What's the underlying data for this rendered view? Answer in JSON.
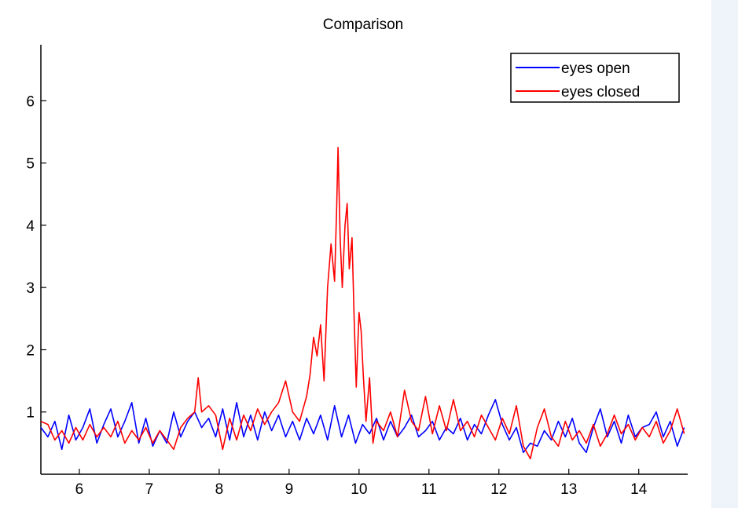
{
  "chart_data": {
    "type": "line",
    "title": "Comparison",
    "xlabel": "",
    "ylabel": "",
    "xlim": [
      5.45,
      14.7
    ],
    "ylim": [
      0,
      6.9
    ],
    "xticks": [
      6,
      7,
      8,
      9,
      10,
      11,
      12,
      13,
      14
    ],
    "yticks": [
      1,
      2,
      3,
      4,
      5,
      6
    ],
    "legend_position": "top-right",
    "grid": false,
    "series": [
      {
        "name": "eyes open",
        "color": "#0000ff",
        "x": [
          5.45,
          5.55,
          5.65,
          5.75,
          5.85,
          5.95,
          6.05,
          6.15,
          6.25,
          6.35,
          6.45,
          6.55,
          6.65,
          6.75,
          6.85,
          6.95,
          7.05,
          7.15,
          7.25,
          7.35,
          7.45,
          7.55,
          7.65,
          7.75,
          7.85,
          7.95,
          8.05,
          8.15,
          8.25,
          8.35,
          8.45,
          8.55,
          8.65,
          8.75,
          8.85,
          8.95,
          9.05,
          9.15,
          9.25,
          9.35,
          9.45,
          9.55,
          9.65,
          9.75,
          9.85,
          9.95,
          10.05,
          10.15,
          10.25,
          10.35,
          10.45,
          10.55,
          10.65,
          10.75,
          10.85,
          10.95,
          11.05,
          11.15,
          11.25,
          11.35,
          11.45,
          11.55,
          11.65,
          11.75,
          11.85,
          11.95,
          12.05,
          12.15,
          12.25,
          12.35,
          12.45,
          12.55,
          12.65,
          12.75,
          12.85,
          12.95,
          13.05,
          13.15,
          13.25,
          13.35,
          13.45,
          13.55,
          13.65,
          13.75,
          13.85,
          13.95,
          14.05,
          14.15,
          14.25,
          14.35,
          14.45,
          14.55,
          14.65
        ],
        "y": [
          0.75,
          0.6,
          0.85,
          0.4,
          0.95,
          0.55,
          0.75,
          1.05,
          0.5,
          0.8,
          1.05,
          0.6,
          0.85,
          1.15,
          0.5,
          0.9,
          0.45,
          0.7,
          0.5,
          1.0,
          0.6,
          0.85,
          1.0,
          0.75,
          0.9,
          0.6,
          1.05,
          0.55,
          1.15,
          0.6,
          0.95,
          0.55,
          1.0,
          0.7,
          0.95,
          0.6,
          0.85,
          0.55,
          0.9,
          0.65,
          0.95,
          0.55,
          1.1,
          0.6,
          0.95,
          0.5,
          0.8,
          0.65,
          0.9,
          0.55,
          0.85,
          0.6,
          0.75,
          0.95,
          0.6,
          0.7,
          0.85,
          0.55,
          0.75,
          0.65,
          0.9,
          0.55,
          0.8,
          0.65,
          0.95,
          1.2,
          0.8,
          0.55,
          0.75,
          0.35,
          0.5,
          0.45,
          0.7,
          0.55,
          0.85,
          0.6,
          0.9,
          0.5,
          0.35,
          0.75,
          1.05,
          0.6,
          0.85,
          0.5,
          0.95,
          0.6,
          0.75,
          0.8,
          1.0,
          0.6,
          0.85,
          0.45,
          0.75
        ]
      },
      {
        "name": "eyes closed",
        "color": "#ff0000",
        "x": [
          5.45,
          5.55,
          5.65,
          5.75,
          5.85,
          5.95,
          6.05,
          6.15,
          6.25,
          6.35,
          6.45,
          6.55,
          6.65,
          6.75,
          6.85,
          6.95,
          7.05,
          7.15,
          7.25,
          7.35,
          7.45,
          7.55,
          7.65,
          7.7,
          7.75,
          7.85,
          7.95,
          8.05,
          8.15,
          8.25,
          8.35,
          8.45,
          8.55,
          8.65,
          8.75,
          8.85,
          8.95,
          9.05,
          9.15,
          9.25,
          9.3,
          9.35,
          9.4,
          9.45,
          9.5,
          9.55,
          9.6,
          9.65,
          9.68,
          9.7,
          9.73,
          9.76,
          9.8,
          9.83,
          9.86,
          9.9,
          9.93,
          9.96,
          10.0,
          10.03,
          10.06,
          10.1,
          10.15,
          10.2,
          10.25,
          10.35,
          10.45,
          10.55,
          10.65,
          10.75,
          10.85,
          10.95,
          11.05,
          11.15,
          11.25,
          11.35,
          11.45,
          11.55,
          11.65,
          11.75,
          11.85,
          11.95,
          12.05,
          12.15,
          12.25,
          12.35,
          12.45,
          12.55,
          12.65,
          12.75,
          12.85,
          12.95,
          13.05,
          13.15,
          13.25,
          13.35,
          13.45,
          13.55,
          13.65,
          13.75,
          13.85,
          13.95,
          14.05,
          14.15,
          14.25,
          14.35,
          14.45,
          14.55,
          14.65
        ],
        "y": [
          0.85,
          0.8,
          0.55,
          0.7,
          0.5,
          0.75,
          0.55,
          0.8,
          0.6,
          0.75,
          0.6,
          0.85,
          0.5,
          0.7,
          0.55,
          0.75,
          0.5,
          0.7,
          0.55,
          0.4,
          0.75,
          0.9,
          1.0,
          1.55,
          1.0,
          1.1,
          0.95,
          0.4,
          0.9,
          0.55,
          0.95,
          0.7,
          1.05,
          0.8,
          1.0,
          1.15,
          1.5,
          1.0,
          0.85,
          1.25,
          1.6,
          2.2,
          1.9,
          2.4,
          1.5,
          3.0,
          3.7,
          3.1,
          4.3,
          5.25,
          3.8,
          3.0,
          4.0,
          4.35,
          3.3,
          3.8,
          2.5,
          1.4,
          2.6,
          2.3,
          1.6,
          0.85,
          1.55,
          0.5,
          0.85,
          0.7,
          1.0,
          0.6,
          1.35,
          0.85,
          0.7,
          1.25,
          0.65,
          1.1,
          0.7,
          1.2,
          0.7,
          0.85,
          0.6,
          0.95,
          0.75,
          0.55,
          0.9,
          0.65,
          1.1,
          0.45,
          0.25,
          0.75,
          1.05,
          0.6,
          0.45,
          0.85,
          0.55,
          0.7,
          0.5,
          0.8,
          0.45,
          0.65,
          0.95,
          0.65,
          0.8,
          0.55,
          0.75,
          0.6,
          0.85,
          0.5,
          0.7,
          1.05,
          0.65
        ]
      }
    ]
  }
}
